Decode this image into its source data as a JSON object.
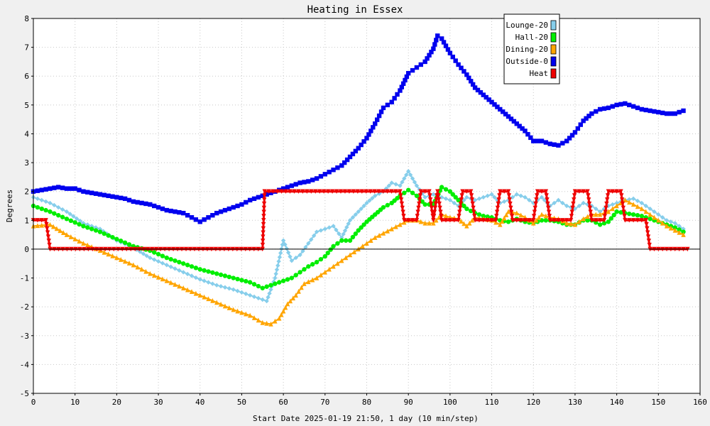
{
  "chart_data": {
    "type": "line",
    "title": "Heating in Essex",
    "xlabel": "Start Date 2025-01-19 21:50, 1 day (10 min/step)",
    "ylabel": "Degrees",
    "xlim": [
      0,
      160
    ],
    "ylim": [
      -5,
      8
    ],
    "xticks": [
      0,
      10,
      20,
      30,
      40,
      50,
      60,
      70,
      80,
      90,
      100,
      110,
      120,
      130,
      140,
      150,
      160
    ],
    "yticks": [
      -5,
      -4,
      -3,
      -2,
      -1,
      0,
      1,
      2,
      3,
      4,
      5,
      6,
      7,
      8
    ],
    "grid": true,
    "legend_position": "top-right",
    "series": [
      {
        "name": "Lounge-20",
        "color": "#87ceeb",
        "marker": "diamond",
        "x": [
          0,
          4,
          8,
          12,
          16,
          20,
          24,
          28,
          32,
          36,
          40,
          44,
          48,
          52,
          56,
          58,
          60,
          62,
          64,
          66,
          68,
          70,
          72,
          74,
          76,
          78,
          80,
          82,
          84,
          86,
          88,
          90,
          92,
          94,
          96,
          98,
          100,
          102,
          104,
          106,
          108,
          110,
          112,
          114,
          116,
          118,
          120,
          122,
          124,
          126,
          128,
          130,
          132,
          134,
          136,
          138,
          140,
          142,
          144,
          146,
          148,
          150,
          152,
          154,
          156
        ],
        "y": [
          1.8,
          1.6,
          1.3,
          0.9,
          0.7,
          0.3,
          0.05,
          -0.3,
          -0.55,
          -0.8,
          -1.05,
          -1.25,
          -1.4,
          -1.6,
          -1.8,
          -1.0,
          0.3,
          -0.4,
          -0.2,
          0.2,
          0.6,
          0.7,
          0.8,
          0.4,
          1.0,
          1.3,
          1.6,
          1.85,
          2.0,
          2.3,
          2.2,
          2.7,
          2.2,
          1.8,
          1.9,
          1.8,
          1.7,
          1.5,
          1.8,
          1.7,
          1.8,
          1.9,
          1.6,
          1.7,
          1.9,
          1.8,
          1.6,
          1.8,
          1.5,
          1.7,
          1.5,
          1.4,
          1.6,
          1.5,
          1.3,
          1.5,
          1.6,
          1.7,
          1.75,
          1.6,
          1.4,
          1.2,
          1.0,
          0.9,
          0.7
        ]
      },
      {
        "name": "Hall-20",
        "color": "#00ee00",
        "marker": "circle",
        "x": [
          0,
          4,
          8,
          12,
          16,
          20,
          24,
          28,
          32,
          36,
          40,
          44,
          48,
          52,
          55,
          58,
          60,
          62,
          64,
          66,
          68,
          70,
          72,
          74,
          76,
          78,
          80,
          82,
          84,
          86,
          88,
          90,
          92,
          94,
          96,
          98,
          100,
          102,
          104,
          106,
          108,
          110,
          112,
          114,
          116,
          118,
          120,
          122,
          124,
          126,
          128,
          130,
          132,
          134,
          136,
          138,
          140,
          142,
          144,
          146,
          148,
          150,
          152,
          154,
          156
        ],
        "y": [
          1.5,
          1.3,
          1.05,
          0.8,
          0.6,
          0.35,
          0.1,
          -0.05,
          -0.3,
          -0.5,
          -0.7,
          -0.85,
          -1.0,
          -1.15,
          -1.35,
          -1.2,
          -1.1,
          -1.0,
          -0.8,
          -0.6,
          -0.45,
          -0.25,
          0.1,
          0.3,
          0.3,
          0.65,
          0.95,
          1.2,
          1.45,
          1.6,
          1.85,
          2.05,
          1.85,
          1.55,
          1.55,
          2.15,
          2.0,
          1.7,
          1.4,
          1.25,
          1.15,
          1.1,
          1.0,
          0.95,
          1.05,
          0.95,
          0.9,
          1.0,
          1.0,
          0.95,
          0.85,
          0.85,
          1.0,
          1.0,
          0.85,
          0.95,
          1.3,
          1.25,
          1.2,
          1.15,
          1.05,
          0.95,
          0.85,
          0.75,
          0.6
        ]
      },
      {
        "name": "Dining-20",
        "color": "#ffa500",
        "marker": "triangle",
        "x": [
          0,
          4,
          8,
          12,
          16,
          20,
          24,
          28,
          32,
          36,
          40,
          44,
          48,
          52,
          55,
          57,
          59,
          61,
          63,
          65,
          68,
          70,
          72,
          74,
          76,
          78,
          80,
          82,
          84,
          86,
          88,
          90,
          92,
          94,
          96,
          98,
          100,
          102,
          104,
          106,
          108,
          110,
          112,
          114,
          116,
          118,
          120,
          122,
          124,
          126,
          128,
          130,
          132,
          134,
          136,
          138,
          140,
          142,
          144,
          146,
          148,
          150,
          152,
          154,
          156
        ],
        "y": [
          0.8,
          0.85,
          0.5,
          0.2,
          -0.05,
          -0.3,
          -0.55,
          -0.85,
          -1.1,
          -1.35,
          -1.6,
          -1.85,
          -2.1,
          -2.3,
          -2.55,
          -2.6,
          -2.4,
          -1.9,
          -1.6,
          -1.2,
          -1.0,
          -0.8,
          -0.6,
          -0.4,
          -0.2,
          0.0,
          0.2,
          0.4,
          0.55,
          0.7,
          0.85,
          1.0,
          1.0,
          0.9,
          0.9,
          1.2,
          1.1,
          1.05,
          0.8,
          1.1,
          1.05,
          1.0,
          0.85,
          1.3,
          1.25,
          1.1,
          0.9,
          1.2,
          1.1,
          1.05,
          0.9,
          0.85,
          1.05,
          1.2,
          1.2,
          1.3,
          1.5,
          1.7,
          1.55,
          1.4,
          1.2,
          1.0,
          0.8,
          0.65,
          0.5
        ]
      },
      {
        "name": "Outside-0",
        "color": "#0000ee",
        "marker": "square",
        "x": [
          0,
          2,
          4,
          6,
          8,
          10,
          12,
          14,
          16,
          18,
          20,
          22,
          24,
          26,
          28,
          30,
          32,
          34,
          36,
          38,
          40,
          42,
          44,
          46,
          48,
          50,
          52,
          54,
          56,
          58,
          60,
          62,
          64,
          66,
          68,
          70,
          72,
          74,
          76,
          78,
          80,
          82,
          84,
          86,
          88,
          90,
          92,
          94,
          96,
          97,
          98,
          100,
          102,
          104,
          106,
          108,
          110,
          112,
          114,
          116,
          118,
          120,
          122,
          124,
          126,
          128,
          130,
          132,
          134,
          136,
          138,
          140,
          142,
          144,
          146,
          148,
          150,
          152,
          154,
          156
        ],
        "y": [
          2.0,
          2.05,
          2.1,
          2.15,
          2.1,
          2.1,
          2.0,
          1.95,
          1.9,
          1.85,
          1.8,
          1.75,
          1.65,
          1.6,
          1.55,
          1.45,
          1.35,
          1.3,
          1.25,
          1.1,
          0.95,
          1.1,
          1.25,
          1.35,
          1.45,
          1.55,
          1.7,
          1.8,
          1.9,
          2.0,
          2.1,
          2.2,
          2.3,
          2.35,
          2.45,
          2.6,
          2.75,
          2.9,
          3.2,
          3.5,
          3.85,
          4.35,
          4.9,
          5.1,
          5.5,
          6.1,
          6.3,
          6.5,
          6.95,
          7.4,
          7.3,
          6.8,
          6.4,
          6.05,
          5.6,
          5.35,
          5.1,
          4.85,
          4.6,
          4.35,
          4.1,
          3.75,
          3.75,
          3.65,
          3.6,
          3.75,
          4.05,
          4.45,
          4.7,
          4.85,
          4.9,
          5.0,
          5.05,
          4.95,
          4.85,
          4.8,
          4.75,
          4.7,
          4.7,
          4.8
        ]
      },
      {
        "name": "Heat",
        "color": "#ee0000",
        "marker": "triangle-down",
        "x": [
          0,
          1,
          3,
          4,
          55,
          55.5,
          88,
          89,
          92,
          93,
          95,
          96,
          97,
          98,
          102,
          103,
          105,
          106,
          111,
          112,
          114,
          115,
          120,
          121,
          123,
          124,
          129,
          130,
          133,
          134,
          137,
          138,
          141,
          142,
          147,
          148,
          157
        ],
        "y": [
          1,
          1,
          1,
          0,
          0,
          2,
          2,
          1,
          1,
          2,
          2,
          1,
          2,
          1,
          1,
          2,
          2,
          1,
          1,
          2,
          2,
          1,
          1,
          2,
          2,
          1,
          1,
          2,
          2,
          1,
          1,
          2,
          2,
          1,
          1,
          0,
          0
        ]
      }
    ]
  }
}
